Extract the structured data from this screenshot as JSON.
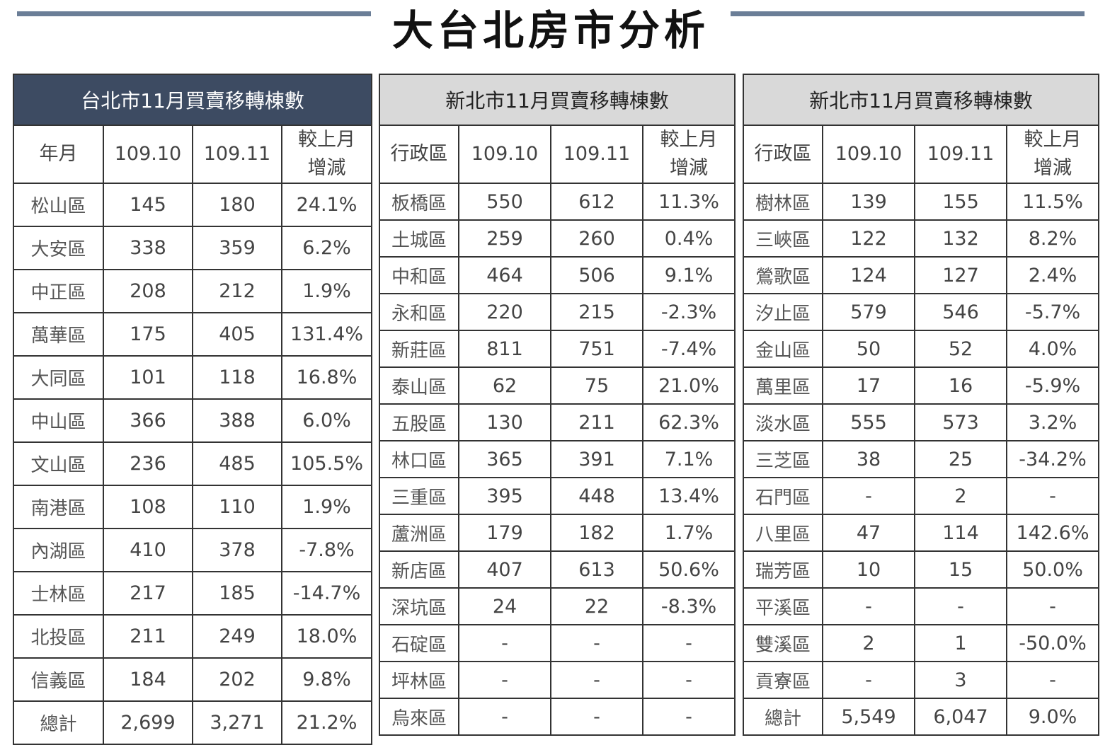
{
  "title": "大台北房市分析",
  "tables": [
    {
      "caption": "台北市11月買賣移轉棟數",
      "headers": [
        "年月",
        "109.10",
        "109.11",
        "較上月\n增減"
      ],
      "rows": [
        [
          "松山區",
          "145",
          "180",
          "24.1%"
        ],
        [
          "大安區",
          "338",
          "359",
          "6.2%"
        ],
        [
          "中正區",
          "208",
          "212",
          "1.9%"
        ],
        [
          "萬華區",
          "175",
          "405",
          "131.4%"
        ],
        [
          "大同區",
          "101",
          "118",
          "16.8%"
        ],
        [
          "中山區",
          "366",
          "388",
          "6.0%"
        ],
        [
          "文山區",
          "236",
          "485",
          "105.5%"
        ],
        [
          "南港區",
          "108",
          "110",
          "1.9%"
        ],
        [
          "內湖區",
          "410",
          "378",
          "-7.8%"
        ],
        [
          "士林區",
          "217",
          "185",
          "-14.7%"
        ],
        [
          "北投區",
          "211",
          "249",
          "18.0%"
        ],
        [
          "信義區",
          "184",
          "202",
          "9.8%"
        ],
        [
          "總計",
          "2,699",
          "3,271",
          "21.2%"
        ]
      ]
    },
    {
      "caption": "新北市11月買賣移轉棟數",
      "headers": [
        "行政區",
        "109.10",
        "109.11",
        "較上月\n增減"
      ],
      "rows": [
        [
          "板橋區",
          "550",
          "612",
          "11.3%"
        ],
        [
          "土城區",
          "259",
          "260",
          "0.4%"
        ],
        [
          "中和區",
          "464",
          "506",
          "9.1%"
        ],
        [
          "永和區",
          "220",
          "215",
          "-2.3%"
        ],
        [
          "新莊區",
          "811",
          "751",
          "-7.4%"
        ],
        [
          "泰山區",
          "62",
          "75",
          "21.0%"
        ],
        [
          "五股區",
          "130",
          "211",
          "62.3%"
        ],
        [
          "林口區",
          "365",
          "391",
          "7.1%"
        ],
        [
          "三重區",
          "395",
          "448",
          "13.4%"
        ],
        [
          "蘆洲區",
          "179",
          "182",
          "1.7%"
        ],
        [
          "新店區",
          "407",
          "613",
          "50.6%"
        ],
        [
          "深坑區",
          "24",
          "22",
          "-8.3%"
        ],
        [
          "石碇區",
          "-",
          "-",
          "-"
        ],
        [
          "坪林區",
          "-",
          "-",
          "-"
        ],
        [
          "烏來區",
          "-",
          "-",
          "-"
        ]
      ]
    },
    {
      "caption": "新北市11月買賣移轉棟數",
      "headers": [
        "行政區",
        "109.10",
        "109.11",
        "較上月\n增減"
      ],
      "rows": [
        [
          "樹林區",
          "139",
          "155",
          "11.5%"
        ],
        [
          "三峽區",
          "122",
          "132",
          "8.2%"
        ],
        [
          "鶯歌區",
          "124",
          "127",
          "2.4%"
        ],
        [
          "汐止區",
          "579",
          "546",
          "-5.7%"
        ],
        [
          "金山區",
          "50",
          "52",
          "4.0%"
        ],
        [
          "萬里區",
          "17",
          "16",
          "-5.9%"
        ],
        [
          "淡水區",
          "555",
          "573",
          "3.2%"
        ],
        [
          "三芝區",
          "38",
          "25",
          "-34.2%"
        ],
        [
          "石門區",
          "-",
          "2",
          "-"
        ],
        [
          "八里區",
          "47",
          "114",
          "142.6%"
        ],
        [
          "瑞芳區",
          "10",
          "15",
          "50.0%"
        ],
        [
          "平溪區",
          "-",
          "-",
          "-"
        ],
        [
          "雙溪區",
          "2",
          "1",
          "-50.0%"
        ],
        [
          "貢寮區",
          "-",
          "3",
          "-"
        ],
        [
          "總計",
          "5,549",
          "6,047",
          "9.0%"
        ]
      ]
    }
  ]
}
